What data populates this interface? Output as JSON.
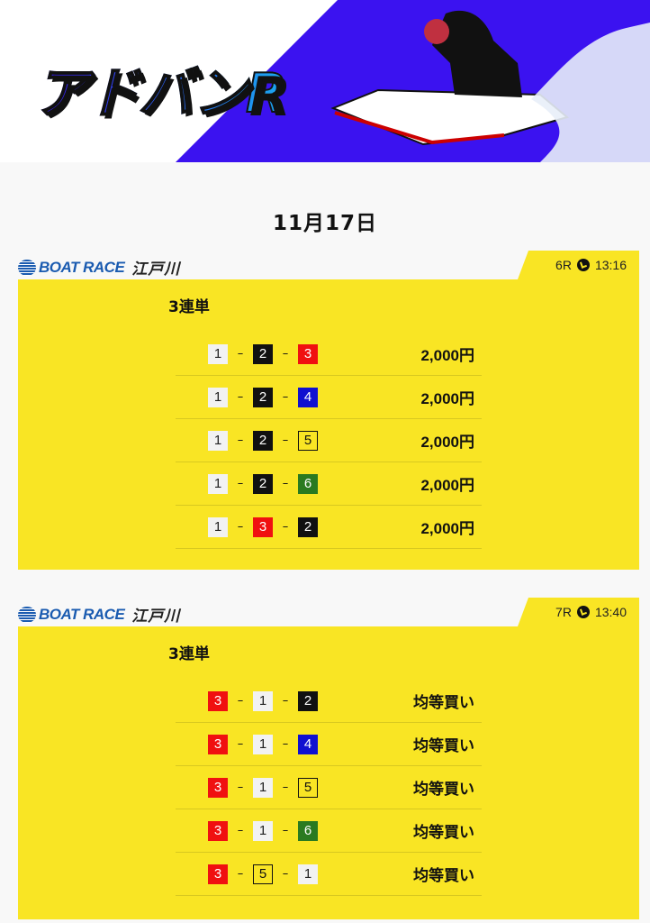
{
  "banner": {
    "logo_text": "アドバンR",
    "colors": {
      "bg": "#3b12f0",
      "title_gradient": [
        "#3b12f0",
        "#1aa8f0"
      ]
    }
  },
  "date": "11月17日",
  "boat_colors": {
    "1": [
      "#f2f2f2",
      "#222"
    ],
    "2": [
      "#111111",
      "#fff"
    ],
    "3": [
      "#f01010",
      "#fff"
    ],
    "4": [
      "#1010d0",
      "#fff"
    ],
    "5": [
      "#f9e524",
      "#111"
    ],
    "6": [
      "#2a7a20",
      "#fff"
    ]
  },
  "races": [
    {
      "logo": "BOAT RACE",
      "venue": "江戸川",
      "race": "6R",
      "time": "13:16",
      "bet_type": "3連単",
      "rows": [
        {
          "combo": [
            "1",
            "2",
            "3"
          ],
          "amount": "2,000円"
        },
        {
          "combo": [
            "1",
            "2",
            "4"
          ],
          "amount": "2,000円"
        },
        {
          "combo": [
            "1",
            "2",
            "5"
          ],
          "amount": "2,000円"
        },
        {
          "combo": [
            "1",
            "2",
            "6"
          ],
          "amount": "2,000円"
        },
        {
          "combo": [
            "1",
            "3",
            "2"
          ],
          "amount": "2,000円"
        }
      ]
    },
    {
      "logo": "BOAT RACE",
      "venue": "江戸川",
      "race": "7R",
      "time": "13:40",
      "bet_type": "3連単",
      "rows": [
        {
          "combo": [
            "3",
            "1",
            "2"
          ],
          "amount": "均等買い"
        },
        {
          "combo": [
            "3",
            "1",
            "4"
          ],
          "amount": "均等買い"
        },
        {
          "combo": [
            "3",
            "1",
            "5"
          ],
          "amount": "均等買い"
        },
        {
          "combo": [
            "3",
            "1",
            "6"
          ],
          "amount": "均等買い"
        },
        {
          "combo": [
            "3",
            "5",
            "1"
          ],
          "amount": "均等買い"
        }
      ]
    }
  ]
}
